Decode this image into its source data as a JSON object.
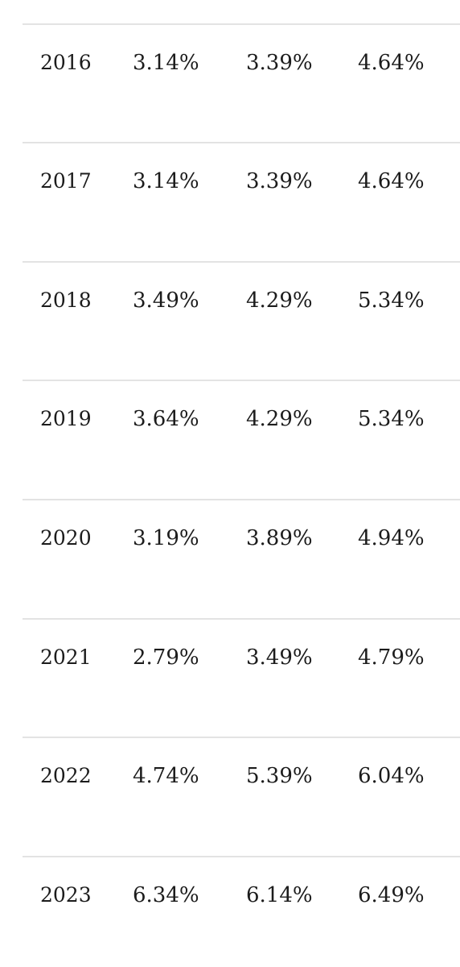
{
  "rates_table": {
    "rows": [
      {
        "year": "2016",
        "a": "3.14%",
        "b": "3.39%",
        "c": "4.64%"
      },
      {
        "year": "2017",
        "a": "3.14%",
        "b": "3.39%",
        "c": "4.64%"
      },
      {
        "year": "2018",
        "a": "3.49%",
        "b": "4.29%",
        "c": "5.34%"
      },
      {
        "year": "2019",
        "a": "3.64%",
        "b": "4.29%",
        "c": "5.34%"
      },
      {
        "year": "2020",
        "a": "3.19%",
        "b": "3.89%",
        "c": "4.94%"
      },
      {
        "year": "2021",
        "a": "2.79%",
        "b": "3.49%",
        "c": "4.79%"
      },
      {
        "year": "2022",
        "a": "4.74%",
        "b": "5.39%",
        "c": "6.04%"
      },
      {
        "year": "2023",
        "a": "6.34%",
        "b": "6.14%",
        "c": "6.49%"
      }
    ]
  }
}
